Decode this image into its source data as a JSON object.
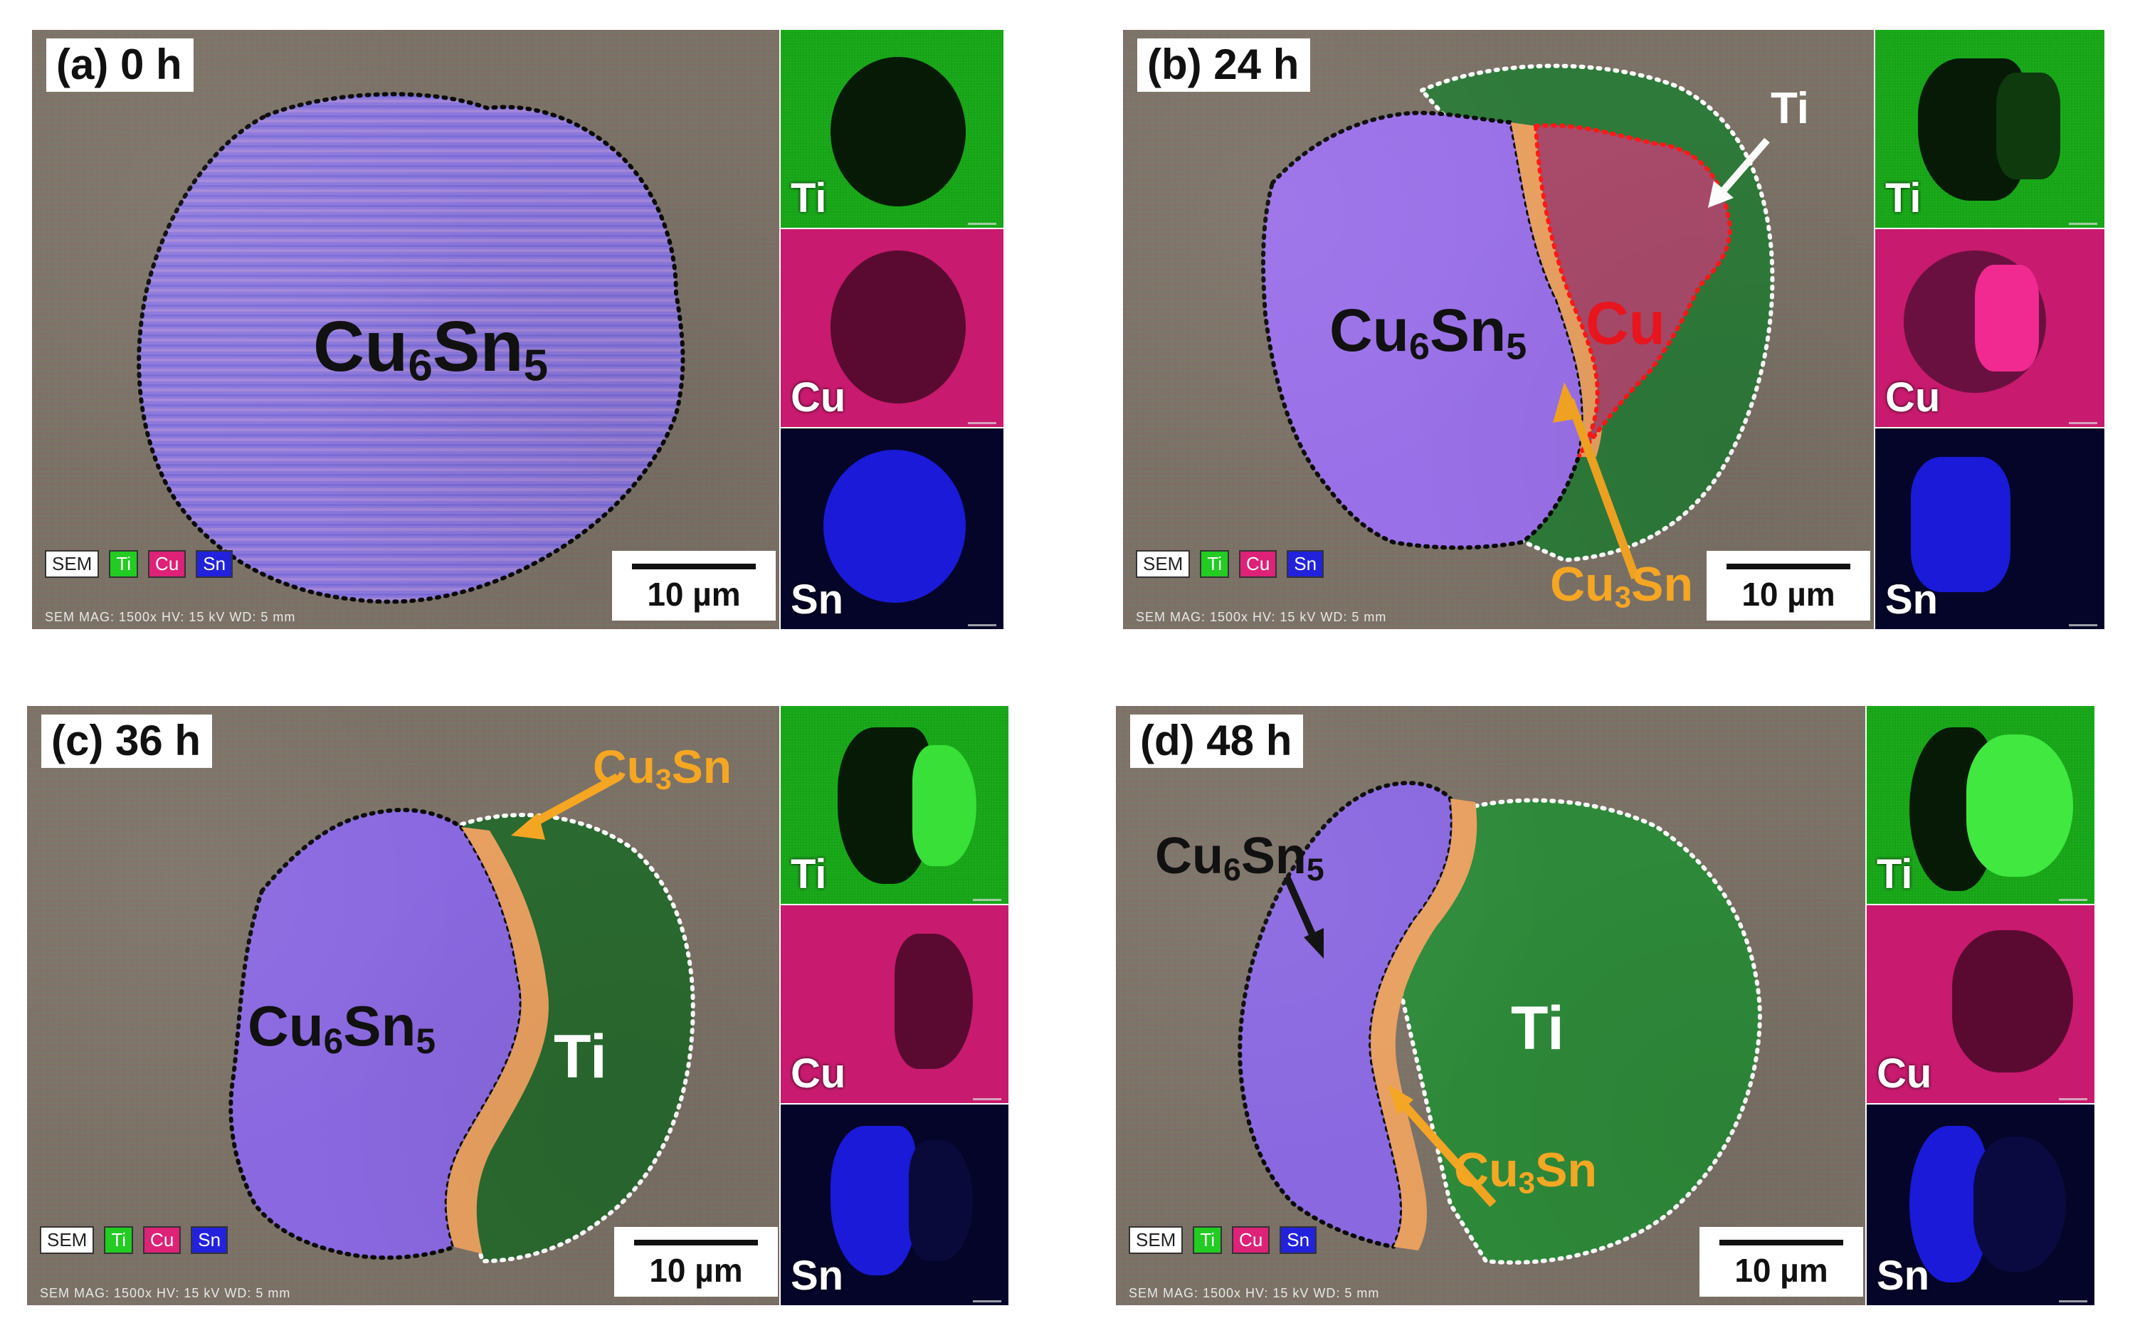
{
  "panels": [
    {
      "title": "(a) 0 h",
      "phase_labels": [
        "Cu6Sn5"
      ],
      "maps": [
        "Ti",
        "Cu",
        "Sn"
      ]
    },
    {
      "title": "(b) 24 h",
      "phase_labels": [
        "Cu6Sn5",
        "Cu",
        "Ti",
        "Cu3Sn"
      ],
      "maps": [
        "Ti",
        "Cu",
        "Sn"
      ]
    },
    {
      "title": "(c) 36 h",
      "phase_labels": [
        "Cu3Sn",
        "Cu6Sn5",
        "Ti"
      ],
      "maps": [
        "Ti",
        "Cu",
        "Sn"
      ]
    },
    {
      "title": "(d) 48 h",
      "phase_labels": [
        "Cu6Sn5",
        "Ti",
        "Cu3Sn"
      ],
      "maps": [
        "Ti",
        "Cu",
        "Sn"
      ]
    }
  ],
  "legend": {
    "sem": "SEM",
    "ti": "Ti",
    "cu": "Cu",
    "sn": "Sn"
  },
  "footer": "SEM    MAG: 1500x    HV: 15 kV    WD: 5 mm",
  "scale_bar": "10 µm",
  "colors": {
    "ti": "#22cc22",
    "cu": "#dd2277",
    "sn": "#2222dd",
    "cu6sn5_region": "#8a70e0",
    "cu3sn_region": "#f0a030",
    "label_orange": "#f5a623",
    "label_red": "#e8141e"
  }
}
